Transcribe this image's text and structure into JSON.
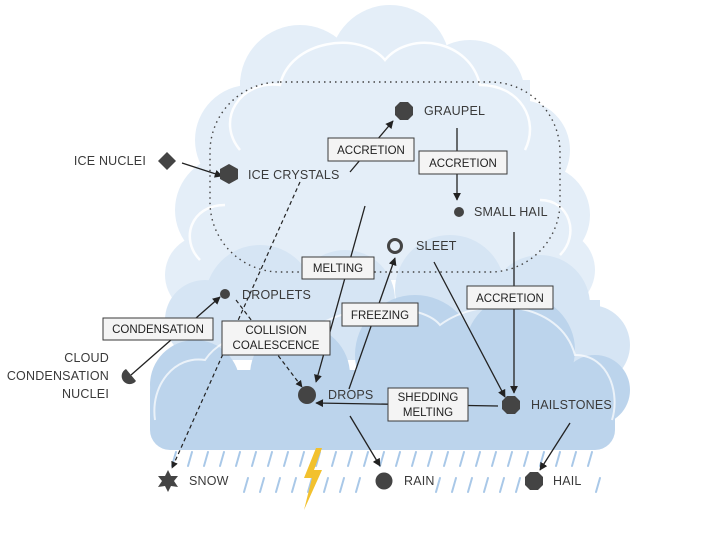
{
  "nodes": {
    "ice_nuclei": "ICE NUCLEI",
    "ice_crystals": "ICE CRYSTALS",
    "graupel": "GRAUPEL",
    "small_hail": "SMALL HAIL",
    "sleet": "SLEET",
    "droplets": "DROPLETS",
    "ccn_line1": "CLOUD",
    "ccn_line2": "CONDENSATION",
    "ccn_line3": "NUCLEI",
    "drops": "DROPS",
    "hailstones": "HAILSTONES",
    "snow": "SNOW",
    "rain": "RAIN",
    "hail": "HAIL"
  },
  "processes": {
    "accretion_1": "ACCRETION",
    "accretion_2": "ACCRETION",
    "accretion_3": "ACCRETION",
    "melting": "MELTING",
    "freezing": "FREEZING",
    "condensation": "CONDENSATION",
    "collision_line1": "COLLISION",
    "collision_line2": "COALESCENCE",
    "shedding_line1": "SHEDDING",
    "shedding_line2": "MELTING"
  },
  "colors": {
    "cloud_light": "#e4eef8",
    "cloud_mid": "#cfe0f2",
    "cloud_dark": "#b7d1ec",
    "rain_streak": "#a9c8e8",
    "marker": "#444444",
    "lightning": "#f2c12e"
  }
}
